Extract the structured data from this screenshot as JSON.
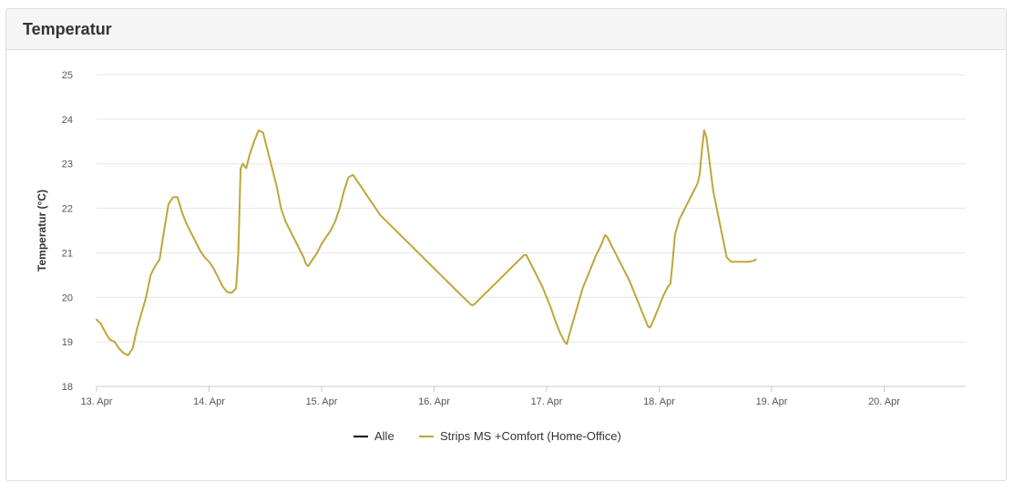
{
  "panel": {
    "title": "Temperatur"
  },
  "chart_data": {
    "type": "line",
    "ylabel": "Temperatur (°C)",
    "xlabel": "",
    "ylim": [
      18,
      25
    ],
    "yticks": [
      18,
      19,
      20,
      21,
      22,
      23,
      24,
      25
    ],
    "xlim": [
      0,
      7.7
    ],
    "xticks": [
      {
        "x": 0,
        "label": "13. Apr"
      },
      {
        "x": 1,
        "label": "14. Apr"
      },
      {
        "x": 2,
        "label": "15. Apr"
      },
      {
        "x": 3,
        "label": "16. Apr"
      },
      {
        "x": 4,
        "label": "17. Apr"
      },
      {
        "x": 5,
        "label": "18. Apr"
      },
      {
        "x": 6,
        "label": "19. Apr"
      },
      {
        "x": 7,
        "label": "20. Apr"
      }
    ],
    "grid": true,
    "legend_position": "bottom",
    "series": [
      {
        "name": "Alle",
        "color": "#000000",
        "points": []
      },
      {
        "name": "Strips MS +Comfort (Home-Office)",
        "color": "#bfa63a",
        "points": [
          [
            0.0,
            19.5
          ],
          [
            0.04,
            19.4
          ],
          [
            0.08,
            19.2
          ],
          [
            0.12,
            19.05
          ],
          [
            0.16,
            19.0
          ],
          [
            0.2,
            18.85
          ],
          [
            0.24,
            18.75
          ],
          [
            0.28,
            18.7
          ],
          [
            0.32,
            18.85
          ],
          [
            0.36,
            19.3
          ],
          [
            0.4,
            19.65
          ],
          [
            0.44,
            20.0
          ],
          [
            0.48,
            20.5
          ],
          [
            0.52,
            20.7
          ],
          [
            0.56,
            20.85
          ],
          [
            0.6,
            21.5
          ],
          [
            0.64,
            22.1
          ],
          [
            0.68,
            22.25
          ],
          [
            0.72,
            22.25
          ],
          [
            0.76,
            21.9
          ],
          [
            0.8,
            21.65
          ],
          [
            0.84,
            21.45
          ],
          [
            0.88,
            21.25
          ],
          [
            0.92,
            21.05
          ],
          [
            0.96,
            20.9
          ],
          [
            1.0,
            20.8
          ],
          [
            1.04,
            20.65
          ],
          [
            1.08,
            20.45
          ],
          [
            1.12,
            20.25
          ],
          [
            1.16,
            20.12
          ],
          [
            1.2,
            20.1
          ],
          [
            1.24,
            20.2
          ],
          [
            1.26,
            21.0
          ],
          [
            1.28,
            22.9
          ],
          [
            1.3,
            23.0
          ],
          [
            1.33,
            22.9
          ],
          [
            1.36,
            23.2
          ],
          [
            1.4,
            23.5
          ],
          [
            1.44,
            23.75
          ],
          [
            1.48,
            23.7
          ],
          [
            1.52,
            23.3
          ],
          [
            1.56,
            22.9
          ],
          [
            1.6,
            22.5
          ],
          [
            1.64,
            22.0
          ],
          [
            1.68,
            21.7
          ],
          [
            1.72,
            21.5
          ],
          [
            1.76,
            21.3
          ],
          [
            1.8,
            21.1
          ],
          [
            1.84,
            20.9
          ],
          [
            1.86,
            20.75
          ],
          [
            1.88,
            20.7
          ],
          [
            1.92,
            20.85
          ],
          [
            1.96,
            21.0
          ],
          [
            2.0,
            21.2
          ],
          [
            2.04,
            21.35
          ],
          [
            2.08,
            21.5
          ],
          [
            2.12,
            21.7
          ],
          [
            2.16,
            22.0
          ],
          [
            2.2,
            22.4
          ],
          [
            2.24,
            22.7
          ],
          [
            2.28,
            22.75
          ],
          [
            2.32,
            22.6
          ],
          [
            2.36,
            22.45
          ],
          [
            2.4,
            22.3
          ],
          [
            2.44,
            22.15
          ],
          [
            2.48,
            22.0
          ],
          [
            2.52,
            21.85
          ],
          [
            2.56,
            21.75
          ],
          [
            2.6,
            21.65
          ],
          [
            2.64,
            21.55
          ],
          [
            2.68,
            21.45
          ],
          [
            2.72,
            21.35
          ],
          [
            2.76,
            21.25
          ],
          [
            2.8,
            21.15
          ],
          [
            2.84,
            21.05
          ],
          [
            2.88,
            20.95
          ],
          [
            2.92,
            20.85
          ],
          [
            2.96,
            20.75
          ],
          [
            3.0,
            20.65
          ],
          [
            3.04,
            20.55
          ],
          [
            3.08,
            20.45
          ],
          [
            3.12,
            20.35
          ],
          [
            3.16,
            20.25
          ],
          [
            3.2,
            20.15
          ],
          [
            3.24,
            20.05
          ],
          [
            3.28,
            19.95
          ],
          [
            3.32,
            19.85
          ],
          [
            3.34,
            19.82
          ],
          [
            3.36,
            19.85
          ],
          [
            3.4,
            19.95
          ],
          [
            3.44,
            20.05
          ],
          [
            3.48,
            20.15
          ],
          [
            3.52,
            20.25
          ],
          [
            3.56,
            20.35
          ],
          [
            3.6,
            20.45
          ],
          [
            3.64,
            20.55
          ],
          [
            3.68,
            20.65
          ],
          [
            3.72,
            20.75
          ],
          [
            3.76,
            20.85
          ],
          [
            3.8,
            20.95
          ],
          [
            3.82,
            20.95
          ],
          [
            3.84,
            20.85
          ],
          [
            3.88,
            20.65
          ],
          [
            3.92,
            20.45
          ],
          [
            3.96,
            20.25
          ],
          [
            4.0,
            20.0
          ],
          [
            4.04,
            19.75
          ],
          [
            4.08,
            19.45
          ],
          [
            4.12,
            19.2
          ],
          [
            4.16,
            19.0
          ],
          [
            4.18,
            18.95
          ],
          [
            4.2,
            19.15
          ],
          [
            4.24,
            19.5
          ],
          [
            4.28,
            19.85
          ],
          [
            4.32,
            20.2
          ],
          [
            4.36,
            20.45
          ],
          [
            4.4,
            20.7
          ],
          [
            4.44,
            20.95
          ],
          [
            4.48,
            21.15
          ],
          [
            4.52,
            21.4
          ],
          [
            4.54,
            21.35
          ],
          [
            4.58,
            21.15
          ],
          [
            4.62,
            20.95
          ],
          [
            4.66,
            20.75
          ],
          [
            4.7,
            20.55
          ],
          [
            4.74,
            20.35
          ],
          [
            4.78,
            20.1
          ],
          [
            4.82,
            19.85
          ],
          [
            4.86,
            19.6
          ],
          [
            4.9,
            19.35
          ],
          [
            4.92,
            19.32
          ],
          [
            4.96,
            19.55
          ],
          [
            5.0,
            19.8
          ],
          [
            5.04,
            20.05
          ],
          [
            5.08,
            20.25
          ],
          [
            5.1,
            20.3
          ],
          [
            5.12,
            20.8
          ],
          [
            5.14,
            21.4
          ],
          [
            5.18,
            21.75
          ],
          [
            5.22,
            21.95
          ],
          [
            5.26,
            22.15
          ],
          [
            5.3,
            22.35
          ],
          [
            5.34,
            22.55
          ],
          [
            5.36,
            22.75
          ],
          [
            5.38,
            23.3
          ],
          [
            5.4,
            23.75
          ],
          [
            5.42,
            23.6
          ],
          [
            5.45,
            23.0
          ],
          [
            5.48,
            22.4
          ],
          [
            5.52,
            21.9
          ],
          [
            5.56,
            21.4
          ],
          [
            5.6,
            20.9
          ],
          [
            5.64,
            20.8
          ],
          [
            5.68,
            20.8
          ],
          [
            5.72,
            20.8
          ],
          [
            5.76,
            20.8
          ],
          [
            5.8,
            20.8
          ],
          [
            5.84,
            20.82
          ],
          [
            5.86,
            20.85
          ]
        ]
      }
    ]
  }
}
